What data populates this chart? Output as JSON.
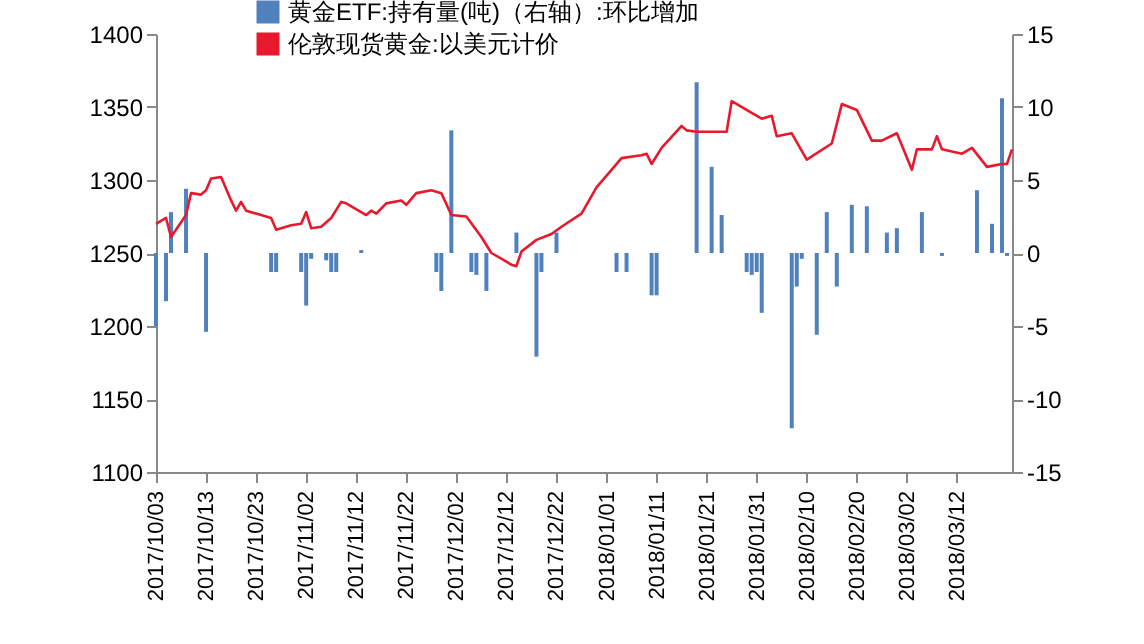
{
  "chart_data": {
    "type": "line",
    "legend": "top",
    "grid": false,
    "xlim": [
      "2017-10-03",
      "2018-03-23"
    ],
    "xticks": [
      {
        "value": "2017-10-03",
        "label": "2017/10/03"
      },
      {
        "value": "2017-10-13",
        "label": "2017/10/13"
      },
      {
        "value": "2017-10-23",
        "label": "2017/10/23"
      },
      {
        "value": "2017-11-02",
        "label": "2017/11/02"
      },
      {
        "value": "2017-11-12",
        "label": "2017/11/12"
      },
      {
        "value": "2017-11-22",
        "label": "2017/11/22"
      },
      {
        "value": "2017-12-02",
        "label": "2017/12/02"
      },
      {
        "value": "2017-12-12",
        "label": "2017/12/12"
      },
      {
        "value": "2017-12-22",
        "label": "2017/12/22"
      },
      {
        "value": "2018-01-01",
        "label": "2018/01/01"
      },
      {
        "value": "2018-01-11",
        "label": "2018/01/11"
      },
      {
        "value": "2018-01-21",
        "label": "2018/01/21"
      },
      {
        "value": "2018-01-31",
        "label": "2018/01/31"
      },
      {
        "value": "2018-02-10",
        "label": "2018/02/10"
      },
      {
        "value": "2018-02-20",
        "label": "2018/02/20"
      },
      {
        "value": "2018-03-02",
        "label": "2018/03/02"
      },
      {
        "value": "2018-03-12",
        "label": "2018/03/12"
      }
    ],
    "ylim": [
      1100,
      1400
    ],
    "yticks": [
      1100,
      1150,
      1200,
      1250,
      1300,
      1350,
      1400
    ],
    "y2lim": [
      -15,
      15
    ],
    "y2ticks": [
      -15,
      -10,
      -5,
      0,
      5,
      10,
      15
    ],
    "series": [
      {
        "name": "黄金ETF:持有量(吨)（右轴）:环比增加",
        "type": "bar",
        "axis": "y2",
        "color": "#4f81bd",
        "x": [
          "2017-10-03",
          "2017-10-05",
          "2017-10-06",
          "2017-10-09",
          "2017-10-13",
          "2017-10-26",
          "2017-10-27",
          "2017-11-01",
          "2017-11-02",
          "2017-11-03",
          "2017-11-06",
          "2017-11-07",
          "2017-11-08",
          "2017-11-13",
          "2017-11-28",
          "2017-11-29",
          "2017-12-01",
          "2017-12-05",
          "2017-12-06",
          "2017-12-08",
          "2017-12-14",
          "2017-12-18",
          "2017-12-19",
          "2017-12-22",
          "2018-01-03",
          "2018-01-05",
          "2018-01-10",
          "2018-01-11",
          "2018-01-19",
          "2018-01-22",
          "2018-01-24",
          "2018-01-29",
          "2018-01-30",
          "2018-01-31",
          "2018-02-01",
          "2018-02-07",
          "2018-02-08",
          "2018-02-09",
          "2018-02-12",
          "2018-02-14",
          "2018-02-16",
          "2018-02-19",
          "2018-02-22",
          "2018-02-26",
          "2018-02-28",
          "2018-03-05",
          "2018-03-09",
          "2018-03-16",
          "2018-03-19",
          "2018-03-21",
          "2018-03-22"
        ],
        "values": [
          -5,
          -3.3,
          2.8,
          4.4,
          -5.4,
          -1.3,
          -1.3,
          -1.3,
          -3.6,
          -0.4,
          -0.5,
          -1.3,
          -1.3,
          0.2,
          -1.3,
          -2.6,
          8.4,
          -1.3,
          -1.5,
          -2.6,
          1.4,
          -7.1,
          -1.3,
          1.4,
          -1.3,
          -1.3,
          -2.9,
          -2.9,
          11.7,
          5.9,
          2.6,
          -1.3,
          -1.5,
          -1.3,
          -4.1,
          -12,
          -2.3,
          -0.4,
          -5.6,
          2.8,
          -2.3,
          3.3,
          3.2,
          1.4,
          1.7,
          2.8,
          -0.2,
          4.3,
          2,
          10.6,
          -0.2
        ]
      },
      {
        "name": "伦敦现货黄金:以美元计价",
        "color": "#e8192c",
        "x": [
          "2017-10-03",
          "2017-10-05",
          "2017-10-06",
          "2017-10-09",
          "2017-10-10",
          "2017-10-12",
          "2017-10-13",
          "2017-10-14",
          "2017-10-16",
          "2017-10-18",
          "2017-10-19",
          "2017-10-20",
          "2017-10-21",
          "2017-10-24",
          "2017-10-26",
          "2017-10-27",
          "2017-10-30",
          "2017-11-01",
          "2017-11-02",
          "2017-11-03",
          "2017-11-05",
          "2017-11-07",
          "2017-11-09",
          "2017-11-10",
          "2017-11-14",
          "2017-11-15",
          "2017-11-16",
          "2017-11-18",
          "2017-11-21",
          "2017-11-22",
          "2017-11-24",
          "2017-11-27",
          "2017-11-29",
          "2017-12-01",
          "2017-12-04",
          "2017-12-07",
          "2017-12-09",
          "2017-12-13",
          "2017-12-14",
          "2017-12-15",
          "2017-12-18",
          "2017-12-21",
          "2017-12-23",
          "2017-12-27",
          "2017-12-30",
          "2018-01-02",
          "2018-01-04",
          "2018-01-08",
          "2018-01-09",
          "2018-01-10",
          "2018-01-12",
          "2018-01-16",
          "2018-01-17",
          "2018-01-19",
          "2018-01-25",
          "2018-01-26",
          "2018-01-30",
          "2018-02-01",
          "2018-02-03",
          "2018-02-04",
          "2018-02-07",
          "2018-02-10",
          "2018-02-15",
          "2018-02-17",
          "2018-02-20",
          "2018-02-21",
          "2018-02-23",
          "2018-02-25",
          "2018-02-28",
          "2018-03-03",
          "2018-03-04",
          "2018-03-07",
          "2018-03-08",
          "2018-03-09",
          "2018-03-13",
          "2018-03-15",
          "2018-03-18",
          "2018-03-21",
          "2018-03-22",
          "2018-03-23"
        ],
        "values": [
          1270,
          1274,
          1261,
          1276,
          1291,
          1290,
          1293,
          1301,
          1302,
          1286,
          1279,
          1285,
          1279,
          1276,
          1274,
          1266,
          1269,
          1270,
          1278,
          1267,
          1268,
          1274,
          1285,
          1284,
          1276,
          1279,
          1277,
          1284,
          1286,
          1283,
          1291,
          1293,
          1291,
          1276,
          1275,
          1261,
          1250,
          1242,
          1241,
          1251,
          1259,
          1263,
          1268,
          1277,
          1295,
          1307,
          1315,
          1317,
          1318,
          1311,
          1322,
          1337,
          1334,
          1333,
          1333,
          1354,
          1346,
          1342,
          1344,
          1330,
          1332,
          1314,
          1325,
          1352,
          1348,
          1341,
          1327,
          1327,
          1332,
          1307,
          1321,
          1321,
          1330,
          1321,
          1318,
          1322,
          1309,
          1311,
          1311,
          1321
        ]
      }
    ]
  }
}
